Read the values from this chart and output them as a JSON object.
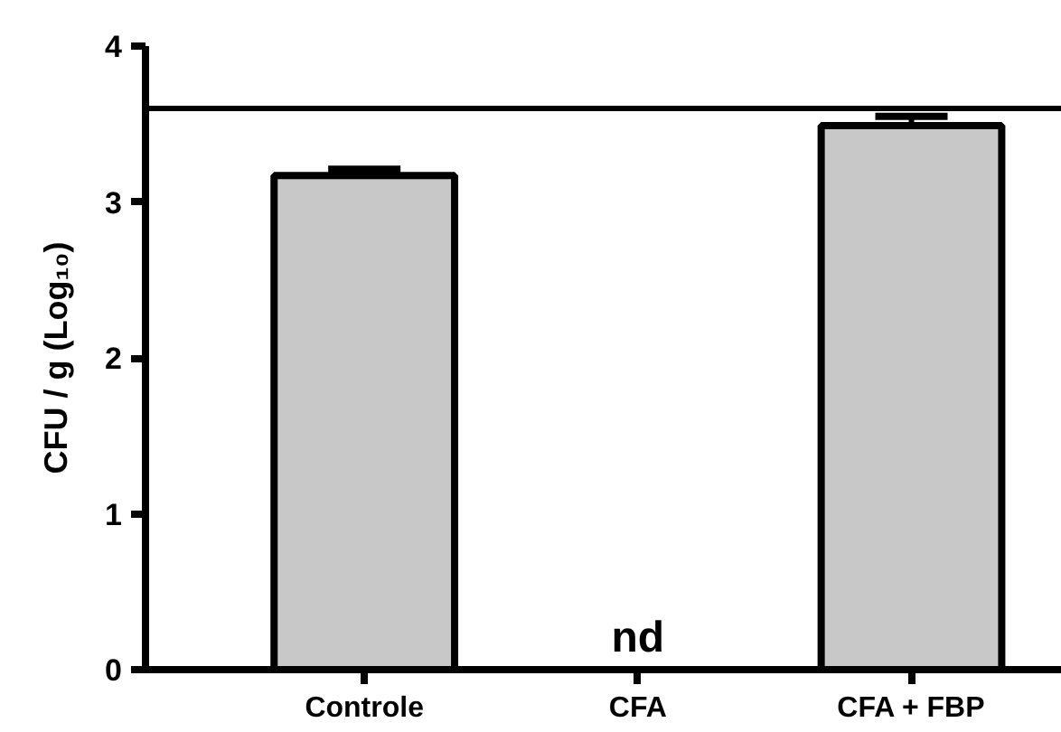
{
  "chart_data": {
    "type": "bar",
    "ylabel": "CFU / g (Log₁₀)",
    "categories": [
      "Controle",
      "CFA",
      "CFA + FBP"
    ],
    "values": [
      3.17,
      null,
      3.49
    ],
    "errors": [
      0.04,
      null,
      0.06
    ],
    "colors": [
      "#c8c8c8",
      "#c8c8c8",
      "#c8c8c8"
    ],
    "ylim": [
      0,
      4
    ],
    "yticks": [
      0,
      1,
      2,
      3,
      4
    ],
    "grid": false,
    "ref_lines": [
      {
        "axis": "y",
        "value": 3.6,
        "label": null,
        "color": "#000000"
      }
    ],
    "annotations": [
      "nd"
    ]
  }
}
